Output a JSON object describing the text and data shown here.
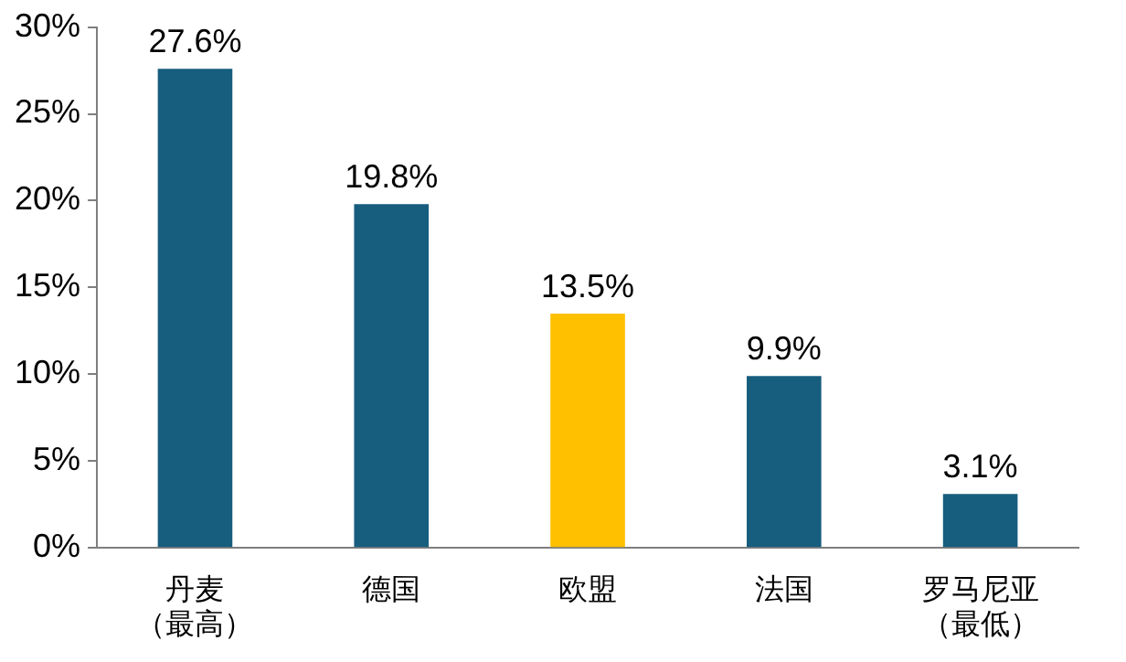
{
  "chart_data": {
    "type": "bar",
    "categories": [
      "丹麦（最高）",
      "德国",
      "欧盟",
      "法国",
      "罗马尼亚（最低）"
    ],
    "values": [
      27.6,
      19.8,
      13.5,
      9.9,
      3.1
    ],
    "colors": [
      "#175d7e",
      "#175d7e",
      "#ffc000",
      "#175d7e",
      "#175d7e"
    ],
    "value_labels": [
      "27.6%",
      "19.8%",
      "13.5%",
      "9.9%",
      "3.1%"
    ],
    "ylim": [
      0,
      30
    ],
    "yticks": [
      {
        "value": 0,
        "label": "0%"
      },
      {
        "value": 5,
        "label": "5%"
      },
      {
        "value": 10,
        "label": "10%"
      },
      {
        "value": 15,
        "label": "15%"
      },
      {
        "value": 20,
        "label": "20%"
      },
      {
        "value": 25,
        "label": "25%"
      },
      {
        "value": 30,
        "label": "30%"
      }
    ],
    "grid": false,
    "legend": false
  }
}
